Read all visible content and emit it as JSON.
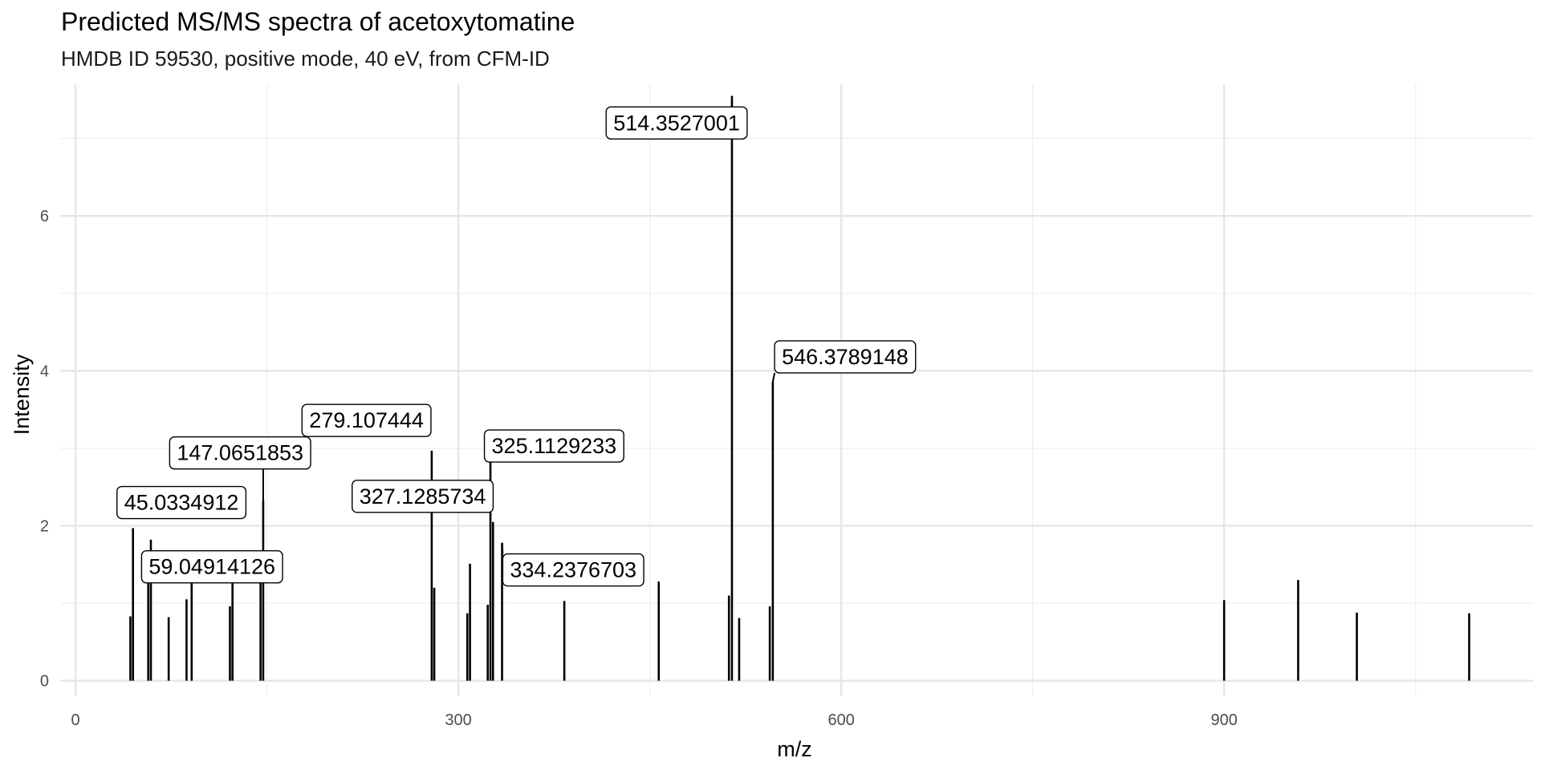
{
  "chart_data": {
    "type": "bar",
    "title": "Predicted MS/MS spectra of acetoxytomatine",
    "subtitle": "HMDB ID 59530, positive mode, 40 eV, from CFM-ID",
    "xlabel": "m/z",
    "ylabel": "Intensity",
    "xlim": [
      -12,
      1142
    ],
    "ylim": [
      -0.2,
      7.7
    ],
    "x_ticks": [
      0,
      300,
      600,
      900
    ],
    "y_ticks": [
      0,
      2,
      4,
      6
    ],
    "grid": true,
    "peaks": [
      {
        "mz": 43.0,
        "intensity": 0.83
      },
      {
        "mz": 45.0334912,
        "intensity": 1.97
      },
      {
        "mz": 57.0,
        "intensity": 1.52
      },
      {
        "mz": 59.04914126,
        "intensity": 1.82
      },
      {
        "mz": 73.0,
        "intensity": 0.82
      },
      {
        "mz": 87.0,
        "intensity": 1.05
      },
      {
        "mz": 91.0,
        "intensity": 1.36
      },
      {
        "mz": 121.0,
        "intensity": 0.96
      },
      {
        "mz": 123.0,
        "intensity": 1.45
      },
      {
        "mz": 145.0,
        "intensity": 1.62
      },
      {
        "mz": 147.0651853,
        "intensity": 2.33
      },
      {
        "mz": 279.107444,
        "intensity": 2.97
      },
      {
        "mz": 281.1,
        "intensity": 1.2
      },
      {
        "mz": 307.0,
        "intensity": 0.87
      },
      {
        "mz": 309.1,
        "intensity": 1.51
      },
      {
        "mz": 323.0,
        "intensity": 0.98
      },
      {
        "mz": 325.1129233,
        "intensity": 3.02
      },
      {
        "mz": 327.1285734,
        "intensity": 2.05
      },
      {
        "mz": 334.2376703,
        "intensity": 1.78
      },
      {
        "mz": 383.0,
        "intensity": 1.03
      },
      {
        "mz": 457.0,
        "intensity": 1.28
      },
      {
        "mz": 512.0,
        "intensity": 1.1
      },
      {
        "mz": 514.3527001,
        "intensity": 7.55
      },
      {
        "mz": 520.0,
        "intensity": 0.81
      },
      {
        "mz": 544.0,
        "intensity": 0.96
      },
      {
        "mz": 546.3789148,
        "intensity": 3.86
      },
      {
        "mz": 900.0,
        "intensity": 1.04
      },
      {
        "mz": 958.0,
        "intensity": 1.3
      },
      {
        "mz": 1004.0,
        "intensity": 0.88
      },
      {
        "mz": 1092.0,
        "intensity": 0.87
      }
    ],
    "annotations": [
      {
        "text": "514.3527001",
        "mz": 514.3527001,
        "intensity": 7.55,
        "label_mz": 471,
        "label_y": 7.2
      },
      {
        "text": "546.3789148",
        "mz": 546.3789148,
        "intensity": 3.86,
        "label_mz": 603,
        "label_y": 4.18
      },
      {
        "text": "279.107444",
        "mz": 279.107444,
        "intensity": 2.97,
        "label_mz": 228,
        "label_y": 3.36
      },
      {
        "text": "325.1129233",
        "mz": 325.1129233,
        "intensity": 3.02,
        "label_mz": 375,
        "label_y": 3.03
      },
      {
        "text": "147.0651853",
        "mz": 147.0651853,
        "intensity": 2.33,
        "label_mz": 129,
        "label_y": 2.94
      },
      {
        "text": "327.1285734",
        "mz": 327.1285734,
        "intensity": 2.05,
        "label_mz": 272,
        "label_y": 2.38
      },
      {
        "text": "45.0334912",
        "mz": 45.0334912,
        "intensity": 1.97,
        "label_mz": 83,
        "label_y": 2.3
      },
      {
        "text": "59.04914126",
        "mz": 59.04914126,
        "intensity": 1.82,
        "label_mz": 107,
        "label_y": 1.47
      },
      {
        "text": "334.2376703",
        "mz": 334.2376703,
        "intensity": 1.78,
        "label_mz": 390,
        "label_y": 1.43
      }
    ]
  }
}
